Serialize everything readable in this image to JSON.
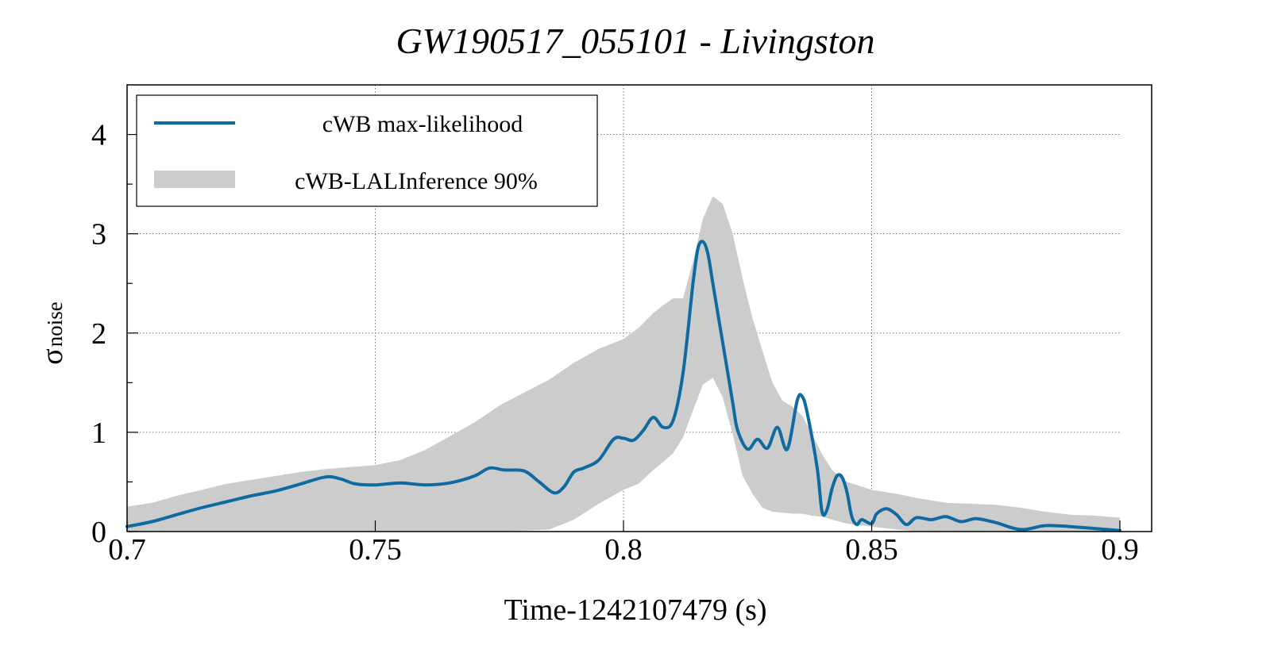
{
  "chart_data": {
    "type": "line",
    "title": "GW190517_055101 - Livingston",
    "xlabel": "Time-1242107479 (s)",
    "ylabel_main": "σ",
    "ylabel_sub": "noise",
    "xlim": [
      0.7,
      0.9
    ],
    "ylim": [
      0,
      4.5
    ],
    "xticks": [
      0.7,
      0.75,
      0.8,
      0.85,
      0.9
    ],
    "xtick_labels": [
      "0.7",
      "0.75",
      "0.8",
      "0.85",
      "0.9"
    ],
    "yticks": [
      0,
      1,
      2,
      3,
      4
    ],
    "ytick_labels": [
      "0",
      "1",
      "2",
      "3",
      "4"
    ],
    "yminor_ticks": [
      0.5,
      1.5,
      2.5,
      3.5
    ],
    "grid": true,
    "legend_position": "top-left",
    "colors": {
      "line": "#0f6aa1",
      "band": "#cccccc"
    },
    "series": [
      {
        "name": "cWB max-likelihood",
        "kind": "line",
        "x": [
          0.7,
          0.705,
          0.71,
          0.715,
          0.72,
          0.725,
          0.73,
          0.735,
          0.74,
          0.743,
          0.746,
          0.75,
          0.755,
          0.76,
          0.765,
          0.77,
          0.773,
          0.776,
          0.78,
          0.783,
          0.786,
          0.788,
          0.79,
          0.792,
          0.795,
          0.798,
          0.8,
          0.802,
          0.804,
          0.806,
          0.808,
          0.81,
          0.812,
          0.814,
          0.815,
          0.816,
          0.817,
          0.818,
          0.82,
          0.822,
          0.823,
          0.825,
          0.827,
          0.829,
          0.831,
          0.833,
          0.835,
          0.836,
          0.837,
          0.839,
          0.84,
          0.841,
          0.842,
          0.843,
          0.844,
          0.845,
          0.846,
          0.847,
          0.848,
          0.85,
          0.851,
          0.853,
          0.855,
          0.857,
          0.859,
          0.862,
          0.865,
          0.868,
          0.871,
          0.875,
          0.88,
          0.885,
          0.89,
          0.895,
          0.9
        ],
        "y": [
          0.05,
          0.1,
          0.17,
          0.24,
          0.3,
          0.36,
          0.41,
          0.48,
          0.55,
          0.53,
          0.48,
          0.47,
          0.49,
          0.47,
          0.49,
          0.56,
          0.64,
          0.62,
          0.61,
          0.5,
          0.39,
          0.45,
          0.6,
          0.64,
          0.72,
          0.93,
          0.94,
          0.92,
          1.02,
          1.15,
          1.05,
          1.12,
          1.6,
          2.5,
          2.85,
          2.92,
          2.8,
          2.5,
          1.9,
          1.3,
          1.02,
          0.83,
          0.93,
          0.84,
          1.05,
          0.83,
          1.32,
          1.36,
          1.2,
          0.65,
          0.2,
          0.22,
          0.43,
          0.56,
          0.55,
          0.4,
          0.15,
          0.07,
          0.12,
          0.08,
          0.18,
          0.23,
          0.17,
          0.07,
          0.14,
          0.12,
          0.15,
          0.1,
          0.13,
          0.09,
          0.02,
          0.06,
          0.05,
          0.03,
          0.01
        ]
      },
      {
        "name": "cWB-LALInference 90%",
        "kind": "band",
        "x": [
          0.7,
          0.705,
          0.71,
          0.715,
          0.72,
          0.725,
          0.73,
          0.735,
          0.74,
          0.745,
          0.75,
          0.755,
          0.76,
          0.765,
          0.77,
          0.775,
          0.78,
          0.785,
          0.79,
          0.795,
          0.8,
          0.803,
          0.806,
          0.808,
          0.81,
          0.812,
          0.814,
          0.816,
          0.818,
          0.82,
          0.822,
          0.824,
          0.826,
          0.828,
          0.83,
          0.832,
          0.834,
          0.836,
          0.838,
          0.84,
          0.842,
          0.845,
          0.85,
          0.855,
          0.86,
          0.865,
          0.87,
          0.875,
          0.88,
          0.885,
          0.89,
          0.895,
          0.9
        ],
        "upper": [
          0.25,
          0.29,
          0.36,
          0.42,
          0.48,
          0.52,
          0.56,
          0.6,
          0.63,
          0.65,
          0.67,
          0.72,
          0.82,
          0.96,
          1.1,
          1.27,
          1.4,
          1.53,
          1.7,
          1.84,
          1.94,
          2.05,
          2.2,
          2.28,
          2.35,
          2.35,
          2.72,
          3.15,
          3.38,
          3.3,
          3.0,
          2.55,
          2.15,
          1.82,
          1.5,
          1.32,
          1.26,
          1.17,
          0.98,
          0.78,
          0.62,
          0.5,
          0.42,
          0.38,
          0.33,
          0.29,
          0.28,
          0.27,
          0.24,
          0.2,
          0.17,
          0.16,
          0.14
        ],
        "lower": [
          0,
          0,
          0,
          0,
          0,
          0,
          0,
          0,
          0,
          0,
          0,
          0,
          0,
          0,
          0,
          0,
          0.01,
          0.02,
          0.12,
          0.28,
          0.42,
          0.48,
          0.62,
          0.7,
          0.79,
          0.95,
          1.22,
          1.48,
          1.55,
          1.35,
          0.98,
          0.56,
          0.38,
          0.24,
          0.2,
          0.19,
          0.18,
          0.18,
          0.16,
          0.15,
          0.12,
          0.08,
          0.05,
          0.02,
          0,
          0,
          0,
          0,
          0,
          0,
          0,
          0,
          0
        ]
      }
    ]
  }
}
